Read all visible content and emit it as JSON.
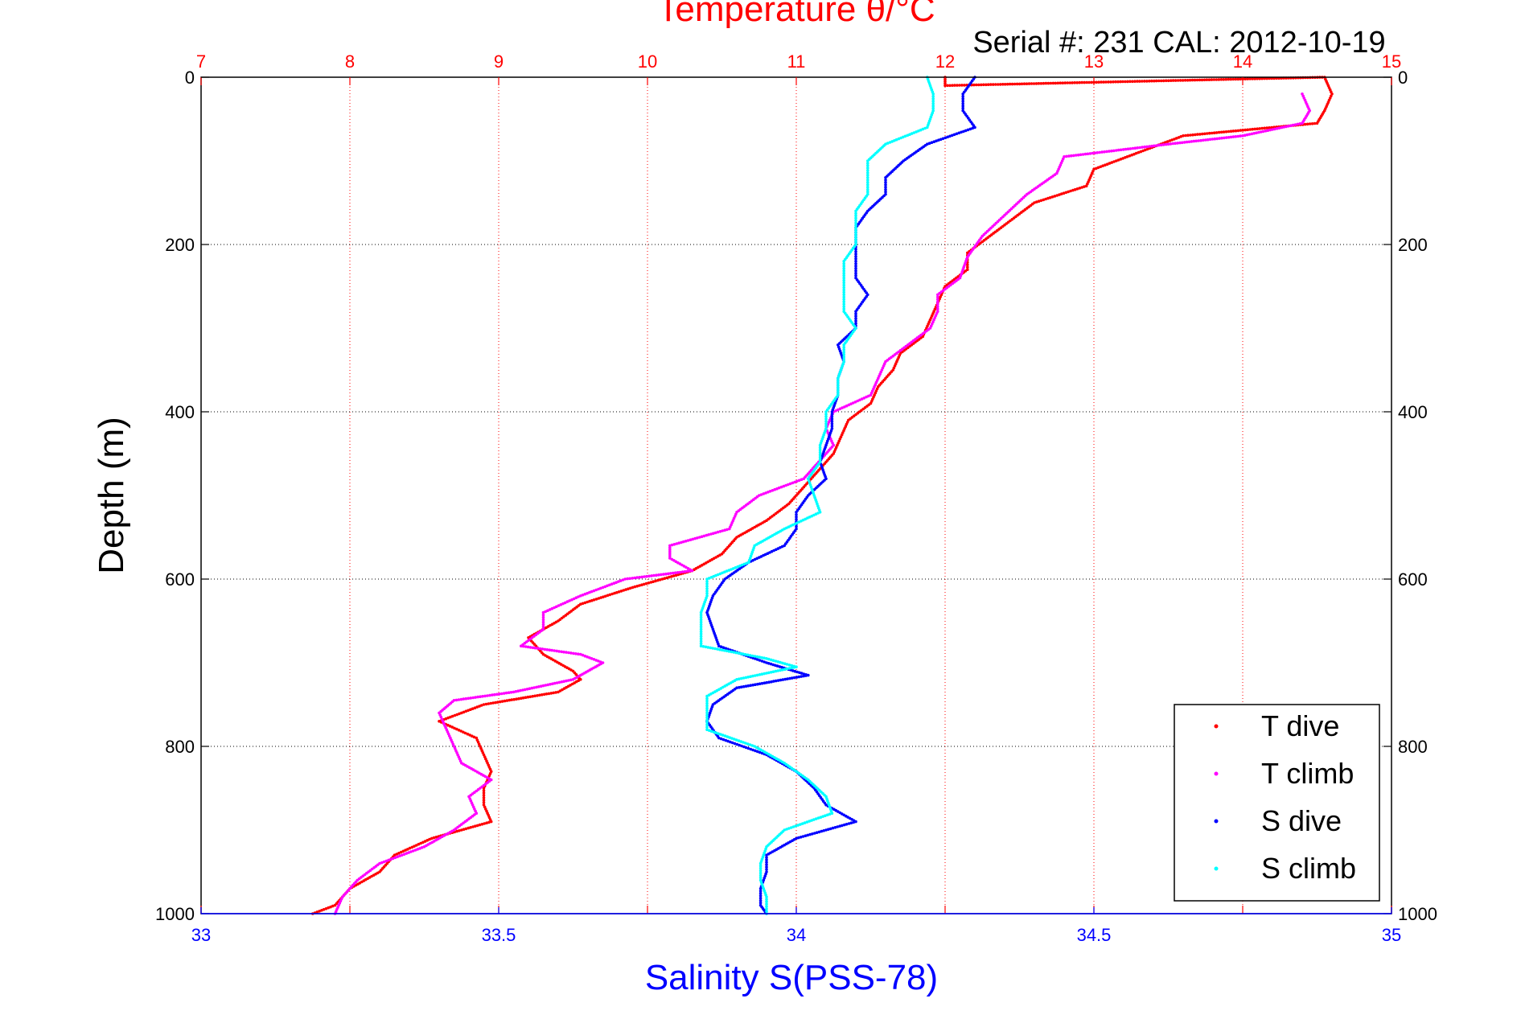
{
  "chart_data": {
    "type": "scatter",
    "title": "Temperature θ/°C",
    "subtitle": "Serial #: 231  CAL: 2012-10-19",
    "xlabel": "Salinity S(PSS-78)",
    "ylabel": "Depth (m)",
    "x_bottom_range": [
      33,
      35
    ],
    "x_bottom_ticks": [
      "33",
      "33.5",
      "34",
      "34.5",
      "35"
    ],
    "x_top_range": [
      7,
      15
    ],
    "x_top_ticks": [
      "7",
      "8",
      "9",
      "10",
      "11",
      "12",
      "13",
      "14",
      "15"
    ],
    "y_range": [
      0,
      1000
    ],
    "y_reversed": true,
    "y_ticks": [
      "0",
      "200",
      "400",
      "600",
      "800",
      "1000"
    ],
    "grid": true,
    "legend_position": "bottom-right",
    "colors": {
      "temperature_axis": "#ff0000",
      "salinity_axis": "#0000ff",
      "t_dive": "#ff0000",
      "t_climb": "#ff00ff",
      "s_dive": "#0000ff",
      "s_climb": "#00ffff"
    },
    "series": [
      {
        "name": "T dive",
        "axis": "temperature",
        "color": "#ff0000",
        "points": [
          [
            12.0,
            0
          ],
          [
            12.0,
            10
          ],
          [
            14.55,
            0
          ],
          [
            14.6,
            20
          ],
          [
            14.55,
            40
          ],
          [
            14.5,
            55
          ],
          [
            13.6,
            70
          ],
          [
            13.3,
            90
          ],
          [
            13.0,
            110
          ],
          [
            12.95,
            130
          ],
          [
            12.6,
            150
          ],
          [
            12.45,
            170
          ],
          [
            12.3,
            190
          ],
          [
            12.15,
            210
          ],
          [
            12.15,
            230
          ],
          [
            12.0,
            250
          ],
          [
            11.95,
            270
          ],
          [
            11.9,
            290
          ],
          [
            11.85,
            310
          ],
          [
            11.7,
            330
          ],
          [
            11.65,
            350
          ],
          [
            11.55,
            370
          ],
          [
            11.5,
            390
          ],
          [
            11.35,
            410
          ],
          [
            11.3,
            430
          ],
          [
            11.25,
            450
          ],
          [
            11.15,
            470
          ],
          [
            11.05,
            490
          ],
          [
            10.95,
            510
          ],
          [
            10.8,
            530
          ],
          [
            10.6,
            550
          ],
          [
            10.5,
            570
          ],
          [
            10.3,
            590
          ],
          [
            9.9,
            610
          ],
          [
            9.55,
            630
          ],
          [
            9.4,
            650
          ],
          [
            9.2,
            670
          ],
          [
            9.3,
            690
          ],
          [
            9.5,
            710
          ],
          [
            9.55,
            720
          ],
          [
            9.4,
            735
          ],
          [
            8.9,
            750
          ],
          [
            8.6,
            770
          ],
          [
            8.85,
            790
          ],
          [
            8.9,
            810
          ],
          [
            8.95,
            830
          ],
          [
            8.9,
            850
          ],
          [
            8.9,
            870
          ],
          [
            8.95,
            890
          ],
          [
            8.55,
            910
          ],
          [
            8.3,
            930
          ],
          [
            8.2,
            950
          ],
          [
            8.0,
            970
          ],
          [
            7.9,
            990
          ],
          [
            7.75,
            1000
          ]
        ]
      },
      {
        "name": "T climb",
        "axis": "temperature",
        "color": "#ff00ff",
        "points": [
          [
            14.4,
            20
          ],
          [
            14.45,
            40
          ],
          [
            14.4,
            55
          ],
          [
            14.0,
            70
          ],
          [
            13.5,
            80
          ],
          [
            12.8,
            95
          ],
          [
            12.75,
            115
          ],
          [
            12.55,
            140
          ],
          [
            12.4,
            165
          ],
          [
            12.25,
            190
          ],
          [
            12.15,
            215
          ],
          [
            12.1,
            240
          ],
          [
            11.95,
            260
          ],
          [
            11.95,
            280
          ],
          [
            11.9,
            300
          ],
          [
            11.75,
            320
          ],
          [
            11.6,
            340
          ],
          [
            11.55,
            360
          ],
          [
            11.5,
            380
          ],
          [
            11.25,
            400
          ],
          [
            11.2,
            420
          ],
          [
            11.25,
            440
          ],
          [
            11.15,
            460
          ],
          [
            11.05,
            480
          ],
          [
            10.75,
            500
          ],
          [
            10.6,
            520
          ],
          [
            10.55,
            540
          ],
          [
            10.15,
            560
          ],
          [
            10.15,
            575
          ],
          [
            10.3,
            590
          ],
          [
            9.85,
            600
          ],
          [
            9.55,
            620
          ],
          [
            9.3,
            640
          ],
          [
            9.3,
            660
          ],
          [
            9.15,
            680
          ],
          [
            9.55,
            690
          ],
          [
            9.7,
            700
          ],
          [
            9.6,
            710
          ],
          [
            9.5,
            720
          ],
          [
            9.1,
            735
          ],
          [
            8.7,
            745
          ],
          [
            8.6,
            760
          ],
          [
            8.65,
            780
          ],
          [
            8.7,
            800
          ],
          [
            8.75,
            820
          ],
          [
            8.95,
            840
          ],
          [
            8.8,
            860
          ],
          [
            8.85,
            880
          ],
          [
            8.7,
            900
          ],
          [
            8.5,
            920
          ],
          [
            8.2,
            940
          ],
          [
            8.05,
            960
          ],
          [
            7.95,
            980
          ],
          [
            7.9,
            1000
          ]
        ]
      },
      {
        "name": "S dive",
        "axis": "salinity",
        "color": "#0000ff",
        "points": [
          [
            34.3,
            0
          ],
          [
            34.28,
            20
          ],
          [
            34.28,
            40
          ],
          [
            34.3,
            60
          ],
          [
            34.22,
            80
          ],
          [
            34.18,
            100
          ],
          [
            34.15,
            120
          ],
          [
            34.15,
            140
          ],
          [
            34.12,
            160
          ],
          [
            34.1,
            180
          ],
          [
            34.1,
            200
          ],
          [
            34.1,
            220
          ],
          [
            34.1,
            240
          ],
          [
            34.12,
            260
          ],
          [
            34.1,
            280
          ],
          [
            34.1,
            300
          ],
          [
            34.07,
            320
          ],
          [
            34.08,
            340
          ],
          [
            34.07,
            360
          ],
          [
            34.07,
            380
          ],
          [
            34.06,
            400
          ],
          [
            34.06,
            420
          ],
          [
            34.05,
            440
          ],
          [
            34.04,
            460
          ],
          [
            34.05,
            480
          ],
          [
            34.02,
            500
          ],
          [
            34.0,
            520
          ],
          [
            34.0,
            540
          ],
          [
            33.98,
            560
          ],
          [
            33.92,
            580
          ],
          [
            33.88,
            600
          ],
          [
            33.86,
            620
          ],
          [
            33.85,
            640
          ],
          [
            33.86,
            660
          ],
          [
            33.87,
            680
          ],
          [
            33.95,
            700
          ],
          [
            34.02,
            715
          ],
          [
            33.9,
            730
          ],
          [
            33.86,
            750
          ],
          [
            33.85,
            770
          ],
          [
            33.87,
            790
          ],
          [
            33.95,
            810
          ],
          [
            34.0,
            830
          ],
          [
            34.03,
            850
          ],
          [
            34.05,
            870
          ],
          [
            34.1,
            890
          ],
          [
            34.0,
            910
          ],
          [
            33.95,
            930
          ],
          [
            33.95,
            950
          ],
          [
            33.94,
            970
          ],
          [
            33.94,
            990
          ],
          [
            33.95,
            1000
          ]
        ]
      },
      {
        "name": "S climb",
        "axis": "salinity",
        "color": "#00ffff",
        "points": [
          [
            34.22,
            0
          ],
          [
            34.23,
            20
          ],
          [
            34.23,
            40
          ],
          [
            34.22,
            60
          ],
          [
            34.15,
            80
          ],
          [
            34.12,
            100
          ],
          [
            34.12,
            120
          ],
          [
            34.12,
            140
          ],
          [
            34.1,
            160
          ],
          [
            34.1,
            180
          ],
          [
            34.1,
            200
          ],
          [
            34.08,
            220
          ],
          [
            34.08,
            240
          ],
          [
            34.08,
            260
          ],
          [
            34.08,
            280
          ],
          [
            34.1,
            300
          ],
          [
            34.08,
            320
          ],
          [
            34.08,
            340
          ],
          [
            34.07,
            360
          ],
          [
            34.07,
            380
          ],
          [
            34.05,
            400
          ],
          [
            34.05,
            420
          ],
          [
            34.04,
            440
          ],
          [
            34.04,
            460
          ],
          [
            34.02,
            480
          ],
          [
            34.03,
            500
          ],
          [
            34.04,
            520
          ],
          [
            33.98,
            540
          ],
          [
            33.93,
            560
          ],
          [
            33.92,
            580
          ],
          [
            33.85,
            600
          ],
          [
            33.85,
            620
          ],
          [
            33.84,
            640
          ],
          [
            33.84,
            660
          ],
          [
            33.84,
            680
          ],
          [
            33.95,
            695
          ],
          [
            34.0,
            705
          ],
          [
            33.9,
            720
          ],
          [
            33.85,
            740
          ],
          [
            33.85,
            760
          ],
          [
            33.85,
            780
          ],
          [
            33.93,
            800
          ],
          [
            33.98,
            820
          ],
          [
            34.02,
            840
          ],
          [
            34.05,
            860
          ],
          [
            34.06,
            880
          ],
          [
            33.98,
            900
          ],
          [
            33.95,
            920
          ],
          [
            33.94,
            940
          ],
          [
            33.94,
            960
          ],
          [
            33.95,
            980
          ],
          [
            33.95,
            1000
          ]
        ]
      }
    ]
  }
}
